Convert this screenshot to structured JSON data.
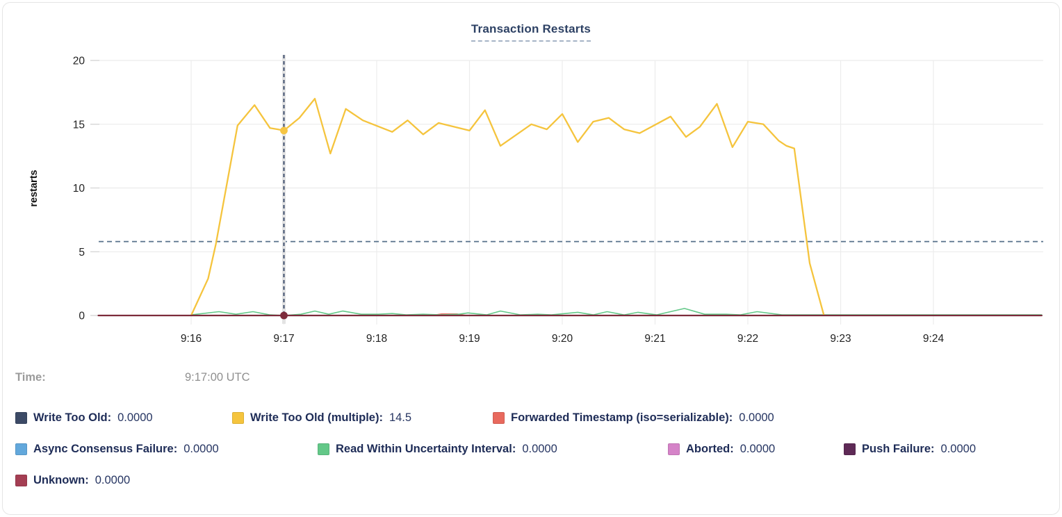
{
  "title": {
    "text": "Transaction Restarts"
  },
  "tooltip": {
    "label": "Time:",
    "value": "9:17:00 UTC"
  },
  "legend": {
    "rows": [
      [
        {
          "label": "Write Too Old:",
          "value": "0.0000",
          "color": "#3c4a66"
        },
        {
          "label": "Write Too Old (multiple):",
          "value": "14.5",
          "color": "#f5c43d"
        },
        {
          "label": "Forwarded Timestamp (iso=serializable):",
          "value": "0.0000",
          "color": "#e8695d"
        }
      ],
      [
        {
          "label": "Async Consensus Failure:",
          "value": "0.0000",
          "color": "#62a8dc"
        },
        {
          "label": "Read Within Uncertainty Interval:",
          "value": "0.0000",
          "color": "#63c888"
        },
        {
          "label": "Aborted:",
          "value": "0.0000",
          "color": "#d583c8"
        },
        {
          "label": "Push Failure:",
          "value": "0.0000",
          "color": "#5e2a56"
        }
      ],
      [
        {
          "label": "Unknown:",
          "value": "0.0000",
          "color": "#a43e53"
        }
      ]
    ]
  },
  "chart_data": {
    "type": "line",
    "title": "Transaction Restarts",
    "xlabel": "",
    "ylabel": "restarts",
    "ylim": [
      0,
      20
    ],
    "yticks": [
      0,
      5,
      10,
      15,
      20
    ],
    "xticks": [
      "9:16",
      "9:17",
      "9:18",
      "9:19",
      "9:20",
      "9:21",
      "9:22",
      "9:23",
      "9:24"
    ],
    "x_domain": [
      "9:15:00",
      "9:25:10"
    ],
    "grid": true,
    "legend_position": "bottom",
    "threshold": {
      "value": 5.8,
      "color": "#57708a",
      "style": "dashed"
    },
    "crosshair": {
      "time": "9:17:00",
      "time_display": "9:17:00 UTC",
      "dots": [
        {
          "series": "Write Too Old (multiple)",
          "value": 14.5,
          "color": "#f6c544"
        },
        {
          "series": "Unknown",
          "value": 0,
          "color": "#7d2b3b"
        }
      ]
    },
    "series": [
      {
        "name": "Write Too Old",
        "color": "#3c4a66",
        "width": 1.6,
        "points": [
          [
            "9:15:00",
            0
          ],
          [
            "9:25:10",
            0
          ]
        ]
      },
      {
        "name": "Write Too Old (multiple)",
        "color": "#f5c43d",
        "width": 2.3,
        "points": [
          [
            "9:16:00",
            0
          ],
          [
            "9:16:11",
            2.9
          ],
          [
            "9:16:16",
            5.6
          ],
          [
            "9:16:30",
            14.9
          ],
          [
            "9:16:41",
            16.5
          ],
          [
            "9:16:51",
            14.7
          ],
          [
            "9:16:56",
            14.6
          ],
          [
            "9:17:00",
            14.5
          ],
          [
            "9:17:10",
            15.5
          ],
          [
            "9:17:20",
            17.0
          ],
          [
            "9:17:30",
            12.7
          ],
          [
            "9:17:40",
            16.2
          ],
          [
            "9:17:51",
            15.3
          ],
          [
            "9:18:10",
            14.4
          ],
          [
            "9:18:20",
            15.3
          ],
          [
            "9:18:30",
            14.2
          ],
          [
            "9:18:40",
            15.1
          ],
          [
            "9:19:00",
            14.5
          ],
          [
            "9:19:10",
            16.1
          ],
          [
            "9:19:20",
            13.3
          ],
          [
            "9:19:40",
            15.0
          ],
          [
            "9:19:50",
            14.6
          ],
          [
            "9:20:00",
            15.8
          ],
          [
            "9:20:10",
            13.6
          ],
          [
            "9:20:20",
            15.2
          ],
          [
            "9:20:30",
            15.5
          ],
          [
            "9:20:40",
            14.6
          ],
          [
            "9:20:50",
            14.3
          ],
          [
            "9:21:10",
            15.6
          ],
          [
            "9:21:20",
            14.0
          ],
          [
            "9:21:29",
            14.8
          ],
          [
            "9:21:40",
            16.6
          ],
          [
            "9:21:50",
            13.2
          ],
          [
            "9:22:00",
            15.2
          ],
          [
            "9:22:10",
            15.0
          ],
          [
            "9:22:20",
            13.7
          ],
          [
            "9:22:25",
            13.3
          ],
          [
            "9:22:30",
            13.1
          ],
          [
            "9:22:40",
            4.1
          ],
          [
            "9:22:49",
            0.1
          ]
        ]
      },
      {
        "name": "Forwarded Timestamp (iso=serializable)",
        "color": "#e8695d",
        "width": 1.6,
        "points": [
          [
            "9:15:00",
            0
          ],
          [
            "9:18:35",
            0
          ],
          [
            "9:18:42",
            0.12
          ],
          [
            "9:18:52",
            0.12
          ],
          [
            "9:18:58",
            0
          ],
          [
            "9:25:10",
            0
          ]
        ]
      },
      {
        "name": "Async Consensus Failure",
        "color": "#62a8dc",
        "width": 1.6,
        "points": [
          [
            "9:15:00",
            0
          ],
          [
            "9:25:10",
            0
          ]
        ]
      },
      {
        "name": "Read Within Uncertainty Interval",
        "color": "#63c888",
        "width": 1.6,
        "points": [
          [
            "9:16:00",
            0.05
          ],
          [
            "9:16:18",
            0.3
          ],
          [
            "9:16:29",
            0.1
          ],
          [
            "9:16:40",
            0.3
          ],
          [
            "9:16:51",
            0.05
          ],
          [
            "9:17:00",
            0.0
          ],
          [
            "9:17:11",
            0.1
          ],
          [
            "9:17:20",
            0.35
          ],
          [
            "9:17:29",
            0.1
          ],
          [
            "9:17:38",
            0.35
          ],
          [
            "9:17:50",
            0.1
          ],
          [
            "9:18:01",
            0.1
          ],
          [
            "9:18:10",
            0.15
          ],
          [
            "9:18:19",
            0.05
          ],
          [
            "9:18:30",
            0.1
          ],
          [
            "9:18:41",
            0.05
          ],
          [
            "9:18:53",
            0.1
          ],
          [
            "9:18:59",
            0.2
          ],
          [
            "9:19:11",
            0.05
          ],
          [
            "9:19:20",
            0.35
          ],
          [
            "9:19:33",
            0.05
          ],
          [
            "9:19:44",
            0.1
          ],
          [
            "9:19:53",
            0.05
          ],
          [
            "9:20:10",
            0.25
          ],
          [
            "9:20:20",
            0.05
          ],
          [
            "9:20:29",
            0.3
          ],
          [
            "9:20:40",
            0.05
          ],
          [
            "9:20:49",
            0.25
          ],
          [
            "9:21:01",
            0.05
          ],
          [
            "9:21:19",
            0.55
          ],
          [
            "9:21:32",
            0.1
          ],
          [
            "9:21:46",
            0.1
          ],
          [
            "9:21:55",
            0.05
          ],
          [
            "9:22:06",
            0.3
          ],
          [
            "9:22:22",
            0.05
          ],
          [
            "9:22:49",
            0.05
          ],
          [
            "9:23:20",
            0.05
          ],
          [
            "9:24:05",
            0.05
          ],
          [
            "9:25:10",
            0.05
          ]
        ]
      },
      {
        "name": "Aborted",
        "color": "#d583c8",
        "width": 1.6,
        "points": [
          [
            "9:15:00",
            0
          ],
          [
            "9:25:10",
            0
          ]
        ]
      },
      {
        "name": "Push Failure",
        "color": "#5e2a56",
        "width": 1.6,
        "points": [
          [
            "9:15:00",
            0
          ],
          [
            "9:25:10",
            0
          ]
        ]
      },
      {
        "name": "Unknown",
        "color": "#7d2b3b",
        "width": 2.2,
        "points": [
          [
            "9:15:00",
            0
          ],
          [
            "9:25:10",
            0
          ]
        ]
      }
    ]
  }
}
